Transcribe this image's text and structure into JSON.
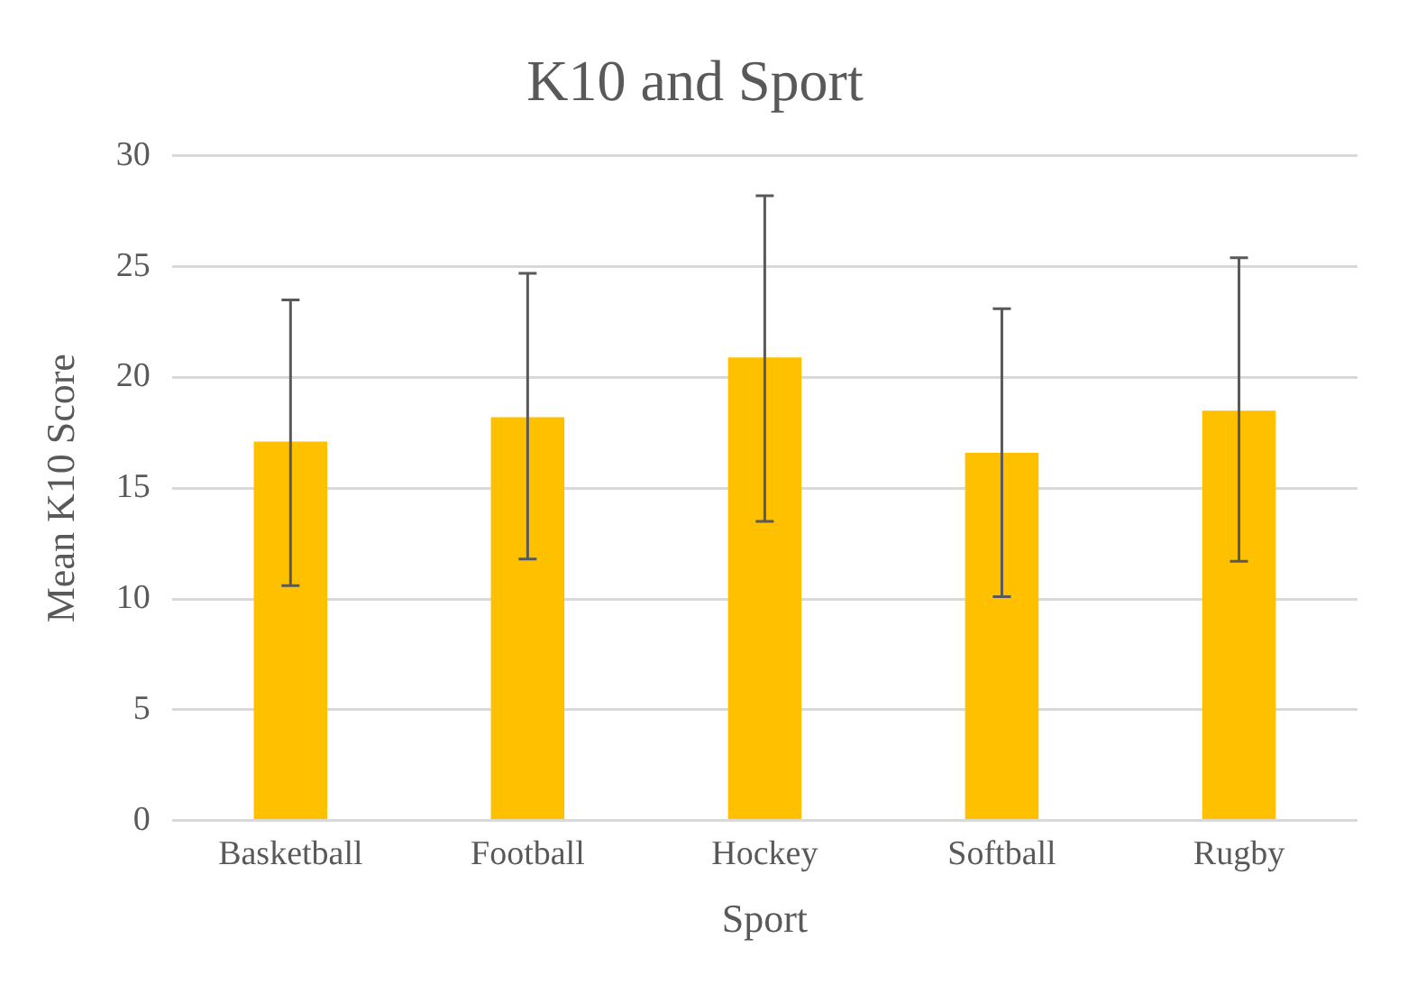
{
  "chart_data": {
    "type": "bar",
    "title": "K10 and Sport",
    "xlabel": "Sport",
    "ylabel": "Mean K10 Score",
    "categories": [
      "Basketball",
      "Football",
      "Hockey",
      "Softball",
      "Rugby"
    ],
    "values": [
      17.1,
      18.2,
      20.9,
      16.6,
      18.5
    ],
    "errors": [
      [
        10.6,
        23.5
      ],
      [
        11.8,
        24.7
      ],
      [
        13.5,
        28.2
      ],
      [
        10.1,
        23.1
      ],
      [
        11.7,
        25.4
      ]
    ],
    "color": "#ffc000",
    "ylim": [
      0,
      30
    ],
    "yticks": [
      0,
      5,
      10,
      15,
      20,
      25,
      30
    ],
    "grid": "y",
    "legend": false
  }
}
